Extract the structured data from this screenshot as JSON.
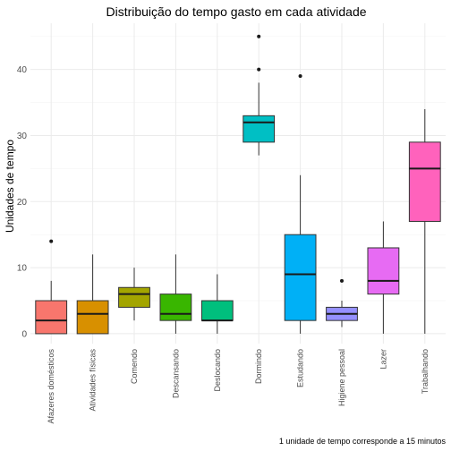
{
  "chart_data": {
    "type": "boxplot",
    "title": "Distribuição do tempo gasto em cada atividade",
    "xlabel": "",
    "ylabel": "Unidades de tempo",
    "caption": "1 unidade de tempo corresponde a 15 minutos",
    "ylim": [
      -1.5,
      47
    ],
    "yticks": [
      0,
      10,
      20,
      30,
      40
    ],
    "grid": true,
    "legend": "none",
    "categories": [
      "Afazeres domésticos",
      "Atividades físicas",
      "Comendo",
      "Descansando",
      "Deslocando",
      "Dormindo",
      "Estudando",
      "Higiene pessoal",
      "Lazer",
      "Trabalhando"
    ],
    "boxes": [
      {
        "category": "Afazeres domésticos",
        "min": 0,
        "q1": 0,
        "median": 2,
        "q3": 5,
        "max": 8,
        "outliers": [
          14
        ],
        "color": "#F8766D"
      },
      {
        "category": "Atividades físicas",
        "min": 0,
        "q1": 0,
        "median": 3,
        "q3": 5,
        "max": 12,
        "outliers": [],
        "color": "#D89000"
      },
      {
        "category": "Comendo",
        "min": 2,
        "q1": 4,
        "median": 6,
        "q3": 7,
        "max": 10,
        "outliers": [],
        "color": "#A3A500"
      },
      {
        "category": "Descansando",
        "min": 0,
        "q1": 2,
        "median": 3,
        "q3": 6,
        "max": 12,
        "outliers": [],
        "color": "#39B600"
      },
      {
        "category": "Deslocando",
        "min": 0,
        "q1": 2,
        "median": 2,
        "q3": 5,
        "max": 9,
        "outliers": [],
        "color": "#00BF7D"
      },
      {
        "category": "Dormindo",
        "min": 27,
        "q1": 29,
        "median": 32,
        "q3": 33,
        "max": 38,
        "outliers": [
          40,
          45
        ],
        "color": "#00BFC4"
      },
      {
        "category": "Estudando",
        "min": 0,
        "q1": 2,
        "median": 9,
        "q3": 15,
        "max": 24,
        "outliers": [
          39
        ],
        "color": "#00B0F6"
      },
      {
        "category": "Higiene pessoal",
        "min": 1,
        "q1": 2,
        "median": 3,
        "q3": 4,
        "max": 5,
        "outliers": [
          8
        ],
        "color": "#9590FF"
      },
      {
        "category": "Lazer",
        "min": 0,
        "q1": 6,
        "median": 8,
        "q3": 13,
        "max": 17,
        "outliers": [],
        "color": "#E76BF3"
      },
      {
        "category": "Trabalhando",
        "min": 0,
        "q1": 17,
        "median": 25,
        "q3": 29,
        "max": 34,
        "outliers": [],
        "color": "#FF62BC"
      }
    ]
  }
}
